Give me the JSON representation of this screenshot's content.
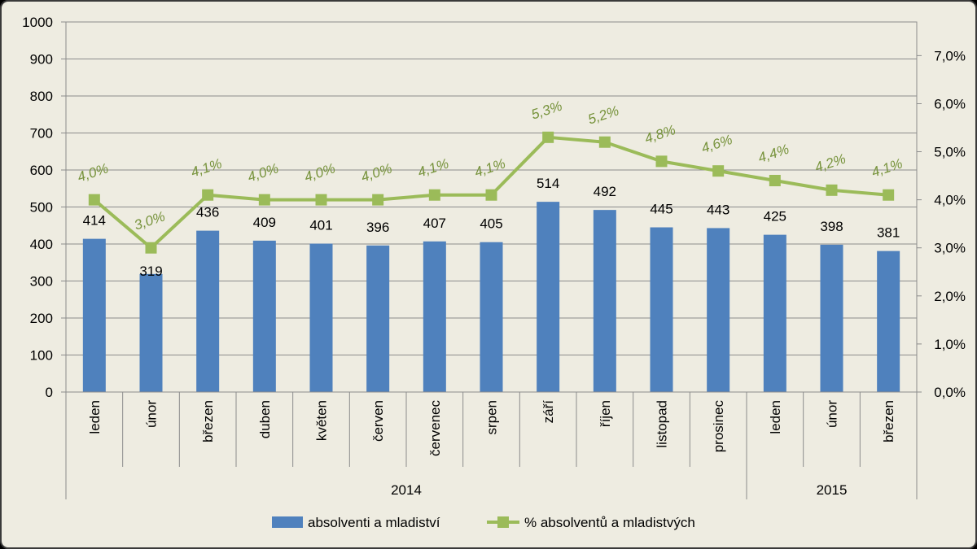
{
  "chart_data": {
    "type": "bar",
    "categories": [
      "leden",
      "únor",
      "březen",
      "duben",
      "květen",
      "červen",
      "červenec",
      "srpen",
      "září",
      "říjen",
      "listopad",
      "prosinec",
      "leden",
      "únor",
      "březen"
    ],
    "groups": [
      {
        "label": "2014",
        "count": 12
      },
      {
        "label": "2015",
        "count": 3
      }
    ],
    "series": [
      {
        "name": "absolventi a mladiství",
        "type": "bar",
        "axis": "left",
        "color": "#4f81bd",
        "values": [
          414,
          319,
          436,
          409,
          401,
          396,
          407,
          405,
          514,
          492,
          445,
          443,
          425,
          398,
          381
        ],
        "labels": [
          "414",
          "319",
          "436",
          "409",
          "401",
          "396",
          "407",
          "405",
          "514",
          "492",
          "445",
          "443",
          "425",
          "398",
          "381"
        ]
      },
      {
        "name": "% absolventů a mladistvých",
        "type": "line",
        "axis": "right",
        "color": "#9bbb59",
        "values": [
          4.0,
          3.0,
          4.1,
          4.0,
          4.0,
          4.0,
          4.1,
          4.1,
          5.3,
          5.2,
          4.8,
          4.6,
          4.4,
          4.2,
          4.1
        ],
        "labels": [
          "4,0%",
          "3,0%",
          "4,1%",
          "4,0%",
          "4,0%",
          "4,0%",
          "4,1%",
          "4,1%",
          "5,3%",
          "5,2%",
          "4,8%",
          "4,6%",
          "4,4%",
          "4,2%",
          "4,1%"
        ]
      }
    ],
    "y_left": {
      "min": 0,
      "max": 1000,
      "ticks": [
        "0",
        "100",
        "200",
        "300",
        "400",
        "500",
        "600",
        "700",
        "800",
        "900",
        "1000"
      ]
    },
    "y_right": {
      "min": 0,
      "max": 7.7,
      "ticks": [
        "0,0%",
        "1,0%",
        "2,0%",
        "3,0%",
        "4,0%",
        "5,0%",
        "6,0%",
        "7,0%"
      ]
    },
    "grid": true,
    "legend_position": "bottom"
  }
}
